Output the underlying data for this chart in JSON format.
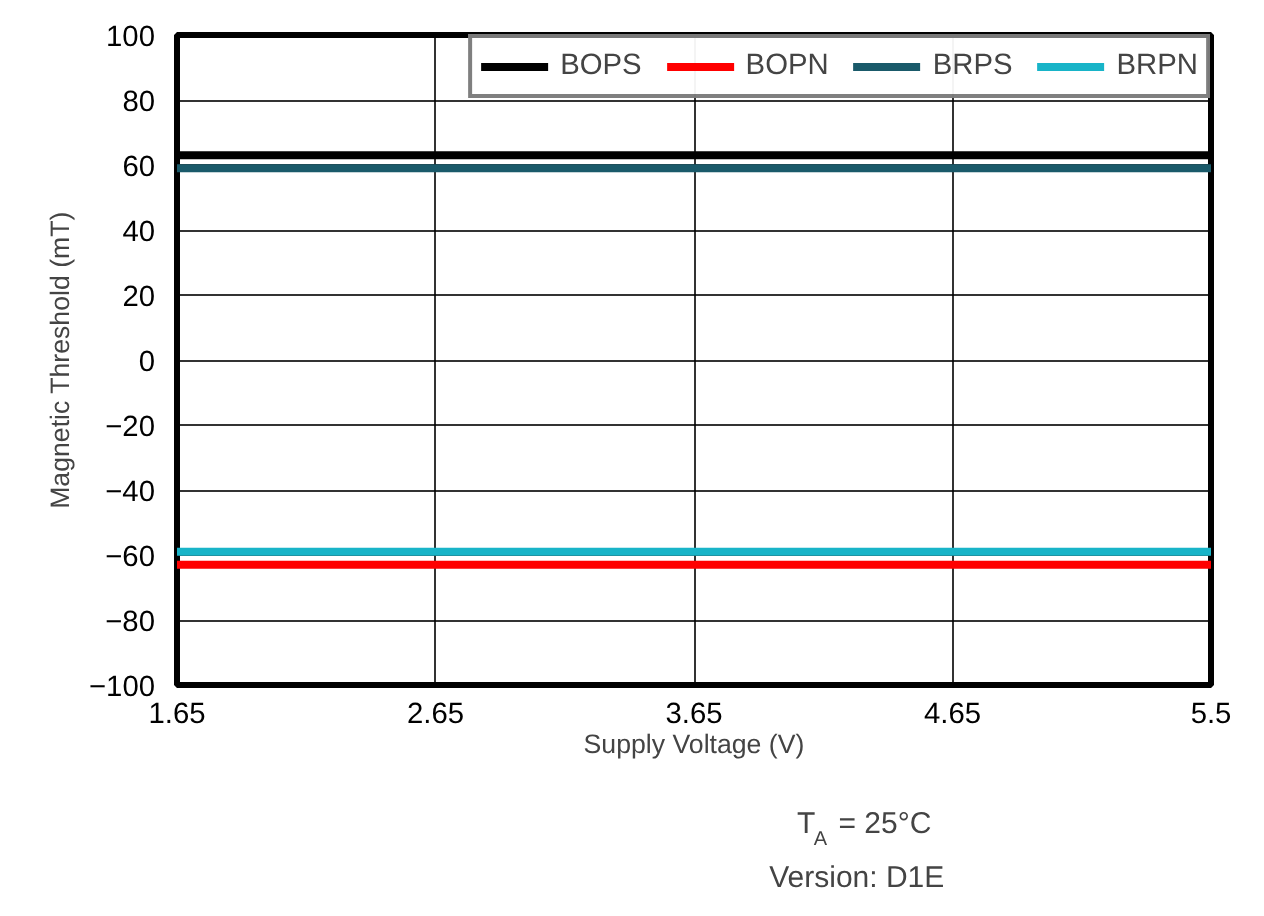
{
  "chart_data": {
    "type": "line",
    "xlabel": "Supply Voltage (V)",
    "ylabel": "Magnetic Threshold (mT)",
    "categories": [
      "1.65",
      "2.65",
      "3.65",
      "4.65",
      "5.5"
    ],
    "series": [
      {
        "name": "BOPS",
        "color": "#000000",
        "values": [
          63,
          63,
          63,
          63,
          63
        ]
      },
      {
        "name": "BOPN",
        "color": "#ff0000",
        "values": [
          -63,
          -63,
          -63,
          -63,
          -63
        ]
      },
      {
        "name": "BRPS",
        "color": "#1a5a6a",
        "values": [
          59,
          59,
          59,
          59,
          59
        ]
      },
      {
        "name": "BRPN",
        "color": "#18b4c8",
        "values": [
          -59,
          -59,
          -59,
          -59,
          -59
        ]
      }
    ],
    "ylim": [
      -100,
      100
    ],
    "yticks": [
      -100,
      -80,
      -60,
      -40,
      -20,
      0,
      20,
      40,
      60,
      80,
      100
    ],
    "grid": true,
    "legend": "top right",
    "line_style": "solid",
    "marker": "none",
    "annotations": [
      "T$_{A}$ = 25°C",
      "Version: D1E"
    ]
  }
}
